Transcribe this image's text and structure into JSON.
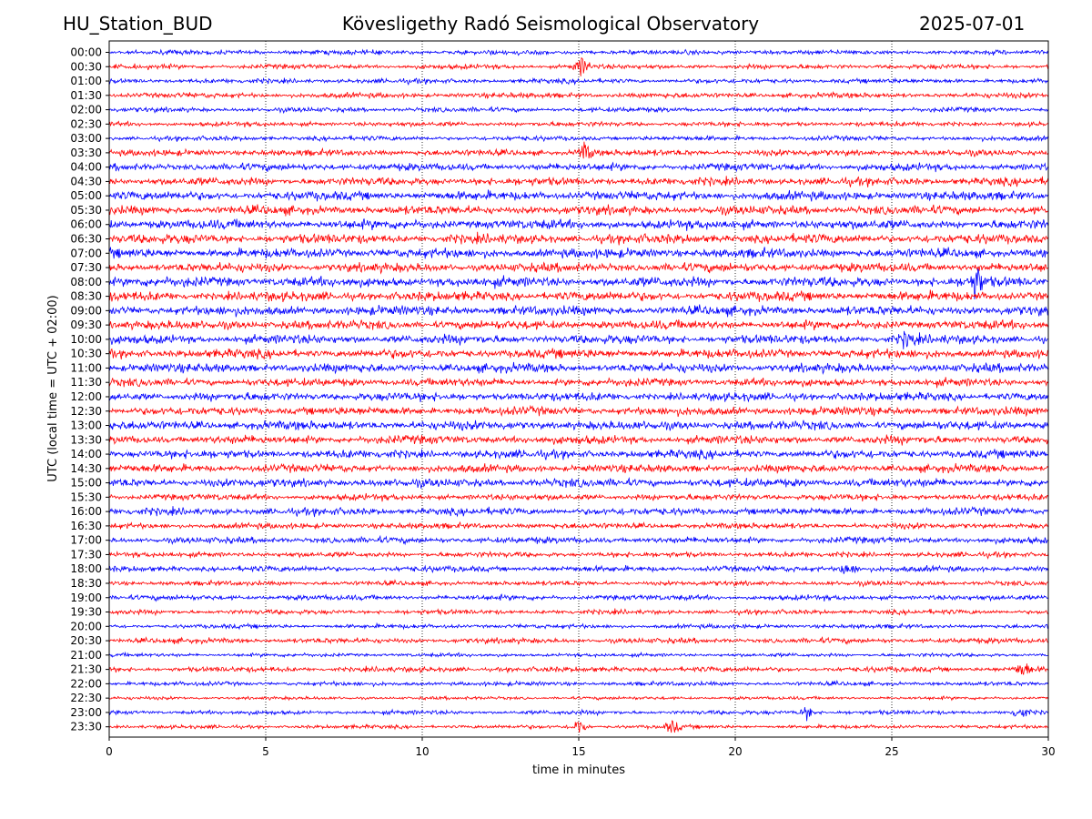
{
  "header": {
    "station": "HU_Station_BUD",
    "observatory": "Kövesligethy Radó Seismological Observatory",
    "date": "2025-07-01"
  },
  "chart_data": {
    "type": "line",
    "title": "Kövesligethy Radó Seismological Observatory",
    "xlabel": "time in minutes",
    "ylabel": "UTC (local time = UTC + 02:00)",
    "xlim": [
      0,
      30
    ],
    "xticks": [
      0,
      5,
      10,
      15,
      20,
      25,
      30
    ],
    "grid_x": true,
    "row_labels": [
      "00:00",
      "00:30",
      "01:00",
      "01:30",
      "02:00",
      "02:30",
      "03:00",
      "03:30",
      "04:00",
      "04:30",
      "05:00",
      "05:30",
      "06:00",
      "06:30",
      "07:00",
      "07:30",
      "08:00",
      "08:30",
      "09:00",
      "09:30",
      "10:00",
      "10:30",
      "11:00",
      "11:30",
      "12:00",
      "12:30",
      "13:00",
      "13:30",
      "14:00",
      "14:30",
      "15:00",
      "15:30",
      "16:00",
      "16:30",
      "17:00",
      "17:30",
      "18:00",
      "18:30",
      "19:00",
      "19:30",
      "20:00",
      "20:30",
      "21:00",
      "21:30",
      "22:00",
      "22:30",
      "23:00",
      "23:30"
    ],
    "trace_colors": [
      "#0000ff",
      "#ff0000"
    ],
    "row_noise_level": [
      0.45,
      0.45,
      0.45,
      0.5,
      0.45,
      0.45,
      0.45,
      0.6,
      0.7,
      0.75,
      0.85,
      0.85,
      0.9,
      0.9,
      0.9,
      0.85,
      0.95,
      0.9,
      0.9,
      0.85,
      0.85,
      0.85,
      0.85,
      0.75,
      0.8,
      0.8,
      0.85,
      0.8,
      0.8,
      0.75,
      0.8,
      0.6,
      0.7,
      0.55,
      0.6,
      0.5,
      0.55,
      0.45,
      0.5,
      0.45,
      0.4,
      0.5,
      0.35,
      0.5,
      0.4,
      0.3,
      0.4,
      0.35
    ],
    "events": [
      {
        "row": 1,
        "minute": 15.1,
        "amplitude": 1.9
      },
      {
        "row": 7,
        "minute": 15.2,
        "amplitude": 1.8
      },
      {
        "row": 16,
        "minute": 27.7,
        "amplitude": 3.2
      },
      {
        "row": 20,
        "minute": 25.5,
        "amplitude": 1.4
      },
      {
        "row": 36,
        "minute": 23.6,
        "amplitude": 1.6
      },
      {
        "row": 43,
        "minute": 29.2,
        "amplitude": 1.7
      },
      {
        "row": 46,
        "minute": 22.3,
        "amplitude": 1.3
      },
      {
        "row": 46,
        "minute": 29.1,
        "amplitude": 1.5
      },
      {
        "row": 47,
        "minute": 15.0,
        "amplitude": 1.8
      },
      {
        "row": 47,
        "minute": 18.0,
        "amplitude": 1.3
      }
    ]
  }
}
